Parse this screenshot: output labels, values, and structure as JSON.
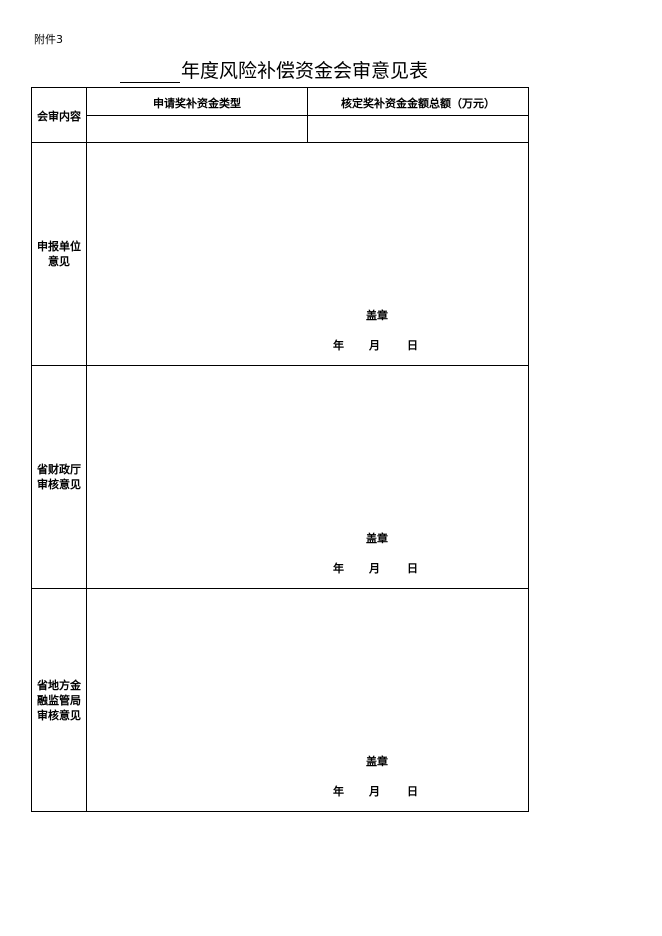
{
  "attachment_label": "附件3",
  "title": "年度风险补偿资金会审意见表",
  "header": {
    "row_label": "会审内容",
    "col1": "申请奖补资金类型",
    "col2": "核定奖补资金金额总额（万元）"
  },
  "sections": [
    {
      "label_lines": [
        "申报单位",
        "意见"
      ],
      "stamp": "盖章",
      "year": "年",
      "month": "月",
      "day": "日"
    },
    {
      "label_lines": [
        "省财政厅",
        "审核意见"
      ],
      "stamp": "盖章",
      "year": "年",
      "month": "月",
      "day": "日"
    },
    {
      "label_lines": [
        "省地方金",
        "融监管局",
        "审核意见"
      ],
      "stamp": "盖章",
      "year": "年",
      "month": "月",
      "day": "日"
    }
  ]
}
